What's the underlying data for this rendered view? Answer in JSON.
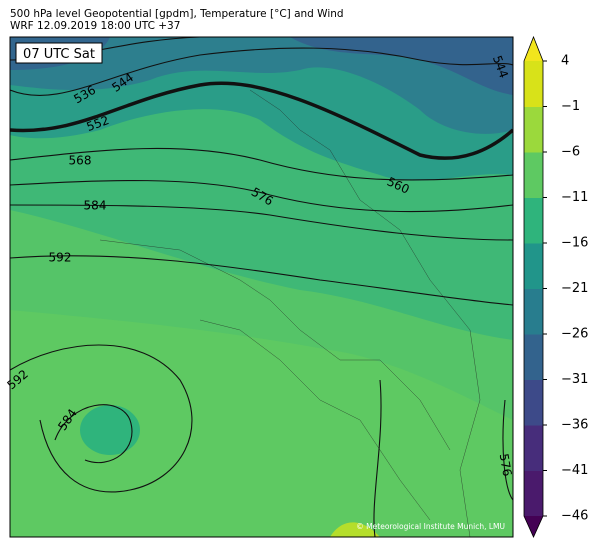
{
  "header": {
    "title": "500 hPa level Geopotential [gpdm], Temperature [°C] and Wind",
    "subtitle": "WRF 12.09.2019 18:00 UTC +37"
  },
  "map": {
    "time_label": "07 UTC Sat",
    "credit": "© Meteorological Institute Munich, LMU",
    "contour_labels": [
      536,
      544,
      552,
      568,
      584,
      592,
      592,
      584,
      576,
      560,
      544,
      576
    ]
  },
  "colorbar": {
    "type": "colorbar",
    "ylim": [
      -46,
      4
    ],
    "yticks": [
      {
        "value": 4,
        "label": "4"
      },
      {
        "value": -1,
        "label": "−1"
      },
      {
        "value": -6,
        "label": "−6"
      },
      {
        "value": -11,
        "label": "−11"
      },
      {
        "value": -16,
        "label": "−16"
      },
      {
        "value": -21,
        "label": "−21"
      },
      {
        "value": -26,
        "label": "−26"
      },
      {
        "value": -31,
        "label": "−31"
      },
      {
        "value": -36,
        "label": "−36"
      },
      {
        "value": -41,
        "label": "−41"
      },
      {
        "value": -46,
        "label": "−46"
      }
    ],
    "colors": [
      "#4a1a6c",
      "#472d7b",
      "#3d4a89",
      "#33638d",
      "#287d8e",
      "#21958a",
      "#2fb47c",
      "#5ec962",
      "#9bd93c",
      "#d8e219"
    ],
    "extend_colors": [
      "#440154",
      "#f2e51d"
    ]
  }
}
